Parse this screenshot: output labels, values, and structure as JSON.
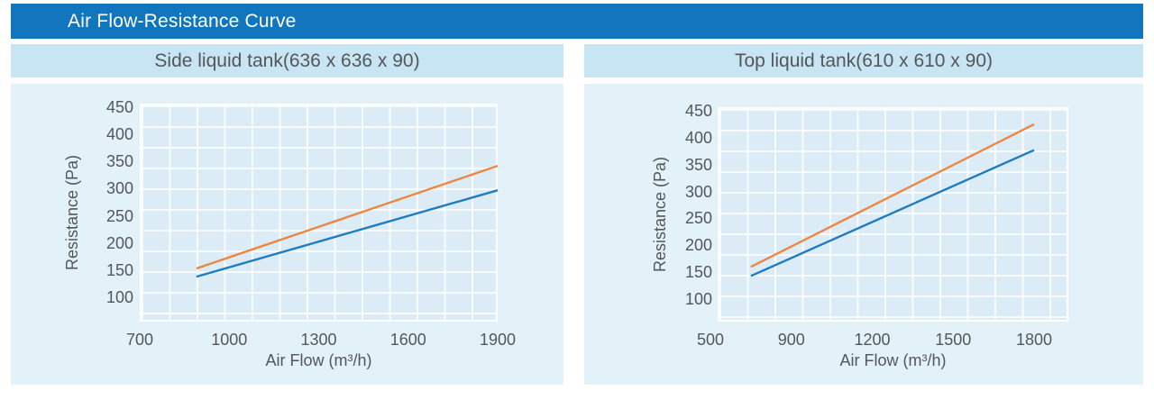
{
  "page": {
    "title": "Air Flow-Resistance Curve"
  },
  "colors": {
    "header_bg": "#1176BE",
    "title_text": "#FFFFFF",
    "band_bg": "#C8E5F4",
    "panel_bg": "#E3F1F9",
    "grid_line": "#FFFFFF",
    "text": "#54575A",
    "series_orange": "#ED8640",
    "series_blue": "#1E7DC0"
  },
  "chart_data": [
    {
      "type": "line",
      "title": "Side liquid tank(636 x 636 x 90)",
      "xlabel": "Air Flow (m³/h)",
      "ylabel": "Resistance (Pa)",
      "x_ticks": [
        700,
        1000,
        1300,
        1600,
        1900
      ],
      "y_ticks": [
        100,
        150,
        200,
        250,
        300,
        350,
        400,
        450
      ],
      "xlim": [
        700,
        1900
      ],
      "ylim": [
        100,
        450
      ],
      "grid": true,
      "legend": "none",
      "series": [
        {
          "name": "upper-curve",
          "color": "#ED8640",
          "points": [
            [
              890,
              153
            ],
            [
              1900,
              342
            ]
          ]
        },
        {
          "name": "lower-curve",
          "color": "#1E7DC0",
          "points": [
            [
              890,
              138
            ],
            [
              1900,
              297
            ]
          ]
        }
      ]
    },
    {
      "type": "line",
      "title": "Top liquid tank(610 x 610 x 90)",
      "xlabel": "Air Flow (m³/h)",
      "ylabel": "Resistance (Pa)",
      "x_ticks": [
        500,
        900,
        1200,
        1500,
        1800
      ],
      "y_ticks": [
        100,
        150,
        200,
        250,
        300,
        350,
        400,
        450
      ],
      "xlim": [
        500,
        1800
      ],
      "ylim": [
        100,
        450
      ],
      "grid": true,
      "legend": "none",
      "series": [
        {
          "name": "upper-curve",
          "color": "#ED8640",
          "points": [
            [
              700,
              160
            ],
            [
              1800,
              425
            ]
          ]
        },
        {
          "name": "lower-curve",
          "color": "#1E7DC0",
          "points": [
            [
              700,
              143
            ],
            [
              1800,
              377
            ]
          ]
        }
      ]
    }
  ]
}
